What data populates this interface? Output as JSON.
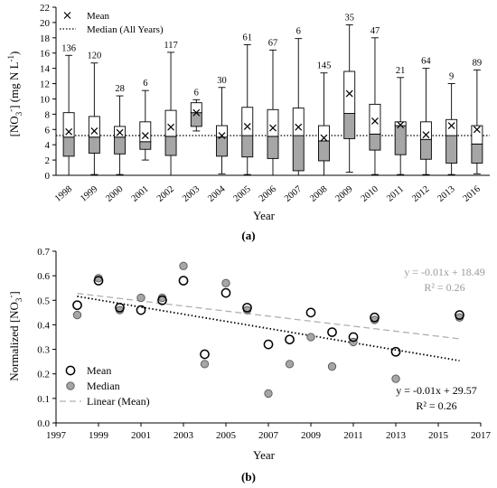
{
  "chart_data": [
    {
      "panel_label": "(a)",
      "type": "box",
      "xlabel": "Year",
      "ylabel": "[NO3-] (mg N L-1)",
      "ylim": [
        0,
        22
      ],
      "yticks": [
        0,
        2,
        4,
        6,
        8,
        10,
        12,
        14,
        16,
        18,
        20,
        22
      ],
      "grid": false,
      "legend": {
        "placement": "top-left",
        "entries": [
          "Mean",
          "Median (All Years)"
        ]
      },
      "median_all_years": 5.2,
      "categories": [
        "1998",
        "1999",
        "2000",
        "2001",
        "2002",
        "2003",
        "2004",
        "2005",
        "2006",
        "2007",
        "2008",
        "2009",
        "2010",
        "2011",
        "2012",
        "2013",
        "2016"
      ],
      "boxes": [
        {
          "year": "1998",
          "n": "136",
          "min": 0,
          "q1": 2.5,
          "median": 5.0,
          "q3": 8.2,
          "max": 15.7,
          "mean": 5.7
        },
        {
          "year": "1999",
          "n": "120",
          "min": 0.1,
          "q1": 2.9,
          "median": 5.0,
          "q3": 7.7,
          "max": 14.7,
          "mean": 5.8
        },
        {
          "year": "2000",
          "n": "28",
          "min": 0.1,
          "q1": 2.8,
          "median": 5.0,
          "q3": 6.4,
          "max": 10.4,
          "mean": 5.6
        },
        {
          "year": "2001",
          "n": "6",
          "min": 2.0,
          "q1": 3.4,
          "median": 4.4,
          "q3": 7.0,
          "max": 11.1,
          "mean": 5.2
        },
        {
          "year": "2002",
          "n": "117",
          "min": 0,
          "q1": 2.6,
          "median": 5.1,
          "q3": 8.5,
          "max": 16.1,
          "mean": 6.3
        },
        {
          "year": "2003",
          "n": "6",
          "min": 5.8,
          "q1": 6.4,
          "median": 8.2,
          "q3": 9.5,
          "max": 9.9,
          "mean": 8.2
        },
        {
          "year": "2004",
          "n": "30",
          "min": 0.2,
          "q1": 2.5,
          "median": 5.0,
          "q3": 6.5,
          "max": 11.5,
          "mean": 5.2
        },
        {
          "year": "2005",
          "n": "61",
          "min": 0.1,
          "q1": 2.4,
          "median": 5.2,
          "q3": 8.9,
          "max": 17.1,
          "mean": 6.4
        },
        {
          "year": "2006",
          "n": "67",
          "min": 0,
          "q1": 2.2,
          "median": 5.1,
          "q3": 8.6,
          "max": 16.4,
          "mean": 6.2
        },
        {
          "year": "2007",
          "n": "6",
          "min": 0,
          "q1": 0.6,
          "median": 5.2,
          "q3": 8.8,
          "max": 17.9,
          "mean": 6.3
        },
        {
          "year": "2008",
          "n": "145",
          "min": 0,
          "q1": 1.9,
          "median": 4.5,
          "q3": 6.5,
          "max": 13.4,
          "mean": 4.9
        },
        {
          "year": "2009",
          "n": "35",
          "min": 0.4,
          "q1": 4.8,
          "median": 8.1,
          "q3": 13.6,
          "max": 19.7,
          "mean": 10.7
        },
        {
          "year": "2010",
          "n": "47",
          "min": 0.1,
          "q1": 3.3,
          "median": 5.4,
          "q3": 9.3,
          "max": 18.0,
          "mean": 7.1
        },
        {
          "year": "2011",
          "n": "21",
          "min": 0.1,
          "q1": 2.7,
          "median": 6.5,
          "q3": 7.0,
          "max": 12.8,
          "mean": 6.6
        },
        {
          "year": "2012",
          "n": "64",
          "min": 0.1,
          "q1": 2.1,
          "median": 4.7,
          "q3": 7.0,
          "max": 14.0,
          "mean": 5.3
        },
        {
          "year": "2013",
          "n": "9",
          "min": 0.1,
          "q1": 1.6,
          "median": 5.2,
          "q3": 7.3,
          "max": 12.0,
          "mean": 6.5
        },
        {
          "year": "2016",
          "n": "89",
          "min": 0.2,
          "q1": 1.6,
          "median": 4.1,
          "q3": 6.5,
          "max": 13.8,
          "mean": 6.0
        }
      ]
    },
    {
      "panel_label": "(b)",
      "type": "scatter",
      "xlabel": "Year",
      "ylabel": "Normalized [NO3-]",
      "xlim": [
        1997,
        2017
      ],
      "ylim": [
        0,
        0.7
      ],
      "xticks": [
        1997,
        1999,
        2001,
        2003,
        2005,
        2007,
        2009,
        2011,
        2013,
        2015,
        2017
      ],
      "yticks": [
        0,
        0.1,
        0.2,
        0.3,
        0.4,
        0.5,
        0.6,
        0.7
      ],
      "grid": false,
      "legend": {
        "placement": "bottom-left",
        "entries": [
          "Mean",
          "Median",
          "Linear (Mean)"
        ]
      },
      "series": [
        {
          "name": "Mean",
          "x": [
            1998,
            1999,
            2000,
            2001,
            2002,
            2003,
            2004,
            2005,
            2006,
            2007,
            2008,
            2009,
            2010,
            2011,
            2012,
            2013,
            2016
          ],
          "y": [
            0.48,
            0.58,
            0.47,
            0.46,
            0.5,
            0.58,
            0.28,
            0.53,
            0.47,
            0.32,
            0.34,
            0.45,
            0.37,
            0.35,
            0.43,
            0.29,
            0.44
          ]
        },
        {
          "name": "Median",
          "x": [
            1998,
            1999,
            2000,
            2001,
            2002,
            2003,
            2004,
            2005,
            2006,
            2007,
            2008,
            2009,
            2010,
            2011,
            2012,
            2013,
            2016
          ],
          "y": [
            0.44,
            0.59,
            0.46,
            0.51,
            0.51,
            0.64,
            0.24,
            0.57,
            0.46,
            0.12,
            0.24,
            0.35,
            0.23,
            0.33,
            0.42,
            0.18,
            0.43
          ]
        }
      ],
      "trendlines": [
        {
          "label": "Linear (Mean)",
          "style": "dotted",
          "color": "#000000",
          "x": [
            1998,
            2016
          ],
          "y": [
            0.516,
            0.254
          ],
          "equation": "y = -0.01x + 29.57",
          "r2": "R² = 0.26"
        },
        {
          "style": "dashed",
          "color": "#b0b0b0",
          "x": [
            1998,
            2016
          ],
          "y": [
            0.528,
            0.343
          ],
          "equation": "y = -0.01x + 18.49",
          "r2": "R² = 0.26"
        }
      ]
    }
  ]
}
